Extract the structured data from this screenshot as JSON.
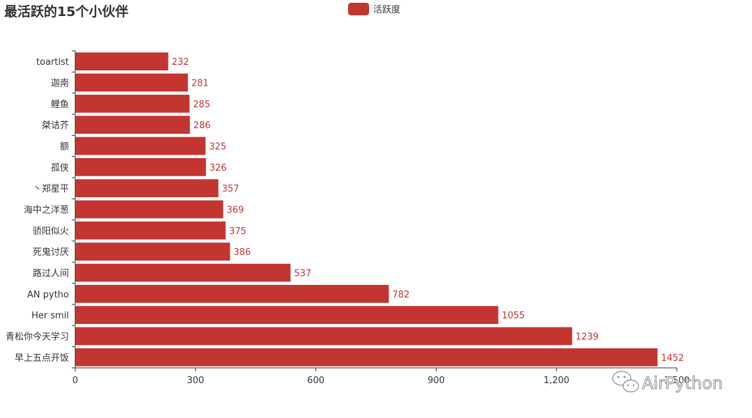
{
  "colors": {
    "bar": "#c23531",
    "axis": "#333333",
    "text": "#333333",
    "watermark_stroke": "#8a8a8a"
  },
  "watermark": {
    "text": "AirPython",
    "icon": "wechat-icon"
  },
  "chart_data": {
    "type": "bar",
    "orientation": "horizontal",
    "title": "最活跃的15个小伙伴",
    "legend": {
      "entries": [
        "活跃度"
      ],
      "position": "top-center"
    },
    "categories": [
      "toartist",
      "迦南",
      "鲤鱼",
      "桀诘芥",
      "额",
      "孤侠",
      "丶郑星平",
      "海中之洋葱",
      "骄阳似火",
      "死鬼讨厌",
      "路过人间",
      "AN pytho",
      "Her smil",
      "青松你今天学习",
      "早上五点开饭"
    ],
    "series": [
      {
        "name": "活跃度",
        "values": [
          232,
          281,
          285,
          286,
          325,
          326,
          357,
          369,
          375,
          386,
          537,
          782,
          1055,
          1239,
          1452
        ]
      }
    ],
    "xlim": [
      0,
      1500
    ],
    "xticks": [
      0,
      300,
      600,
      900,
      1200,
      1500
    ],
    "xtick_labels": [
      "0",
      "300",
      "600",
      "900",
      "1,200",
      "1,500"
    ],
    "xlabel": "",
    "ylabel": "",
    "grid": false
  }
}
